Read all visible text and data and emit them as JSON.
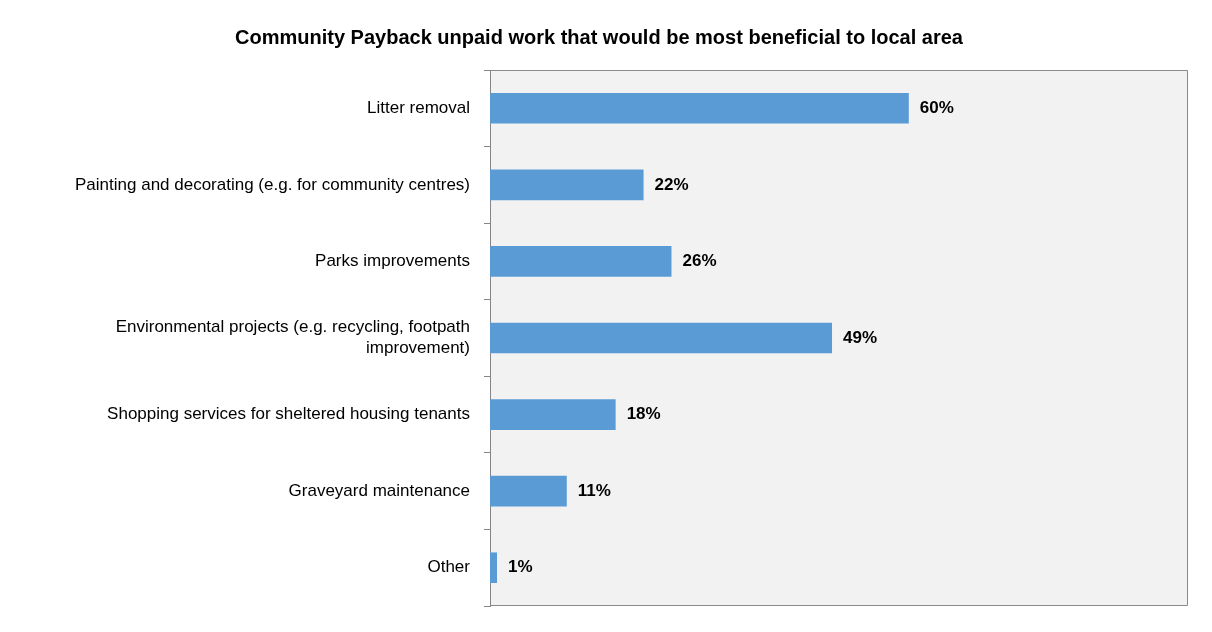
{
  "chart_data": {
    "type": "bar",
    "orientation": "horizontal",
    "title": "Community Payback unpaid work that would be most beneficial to local area",
    "categories": [
      "Litter removal",
      "Painting and decorating (e.g. for community centres)",
      "Parks improvements",
      "Environmental projects (e.g. recycling, footpath improvement)",
      "Shopping services for sheltered housing tenants",
      "Graveyard maintenance",
      "Other"
    ],
    "values": [
      60,
      22,
      26,
      49,
      18,
      11,
      1
    ],
    "value_labels": [
      "60%",
      "22%",
      "26%",
      "49%",
      "18%",
      "11%",
      "1%"
    ],
    "color": "#5b9bd5",
    "xlim": [
      0,
      100
    ],
    "tick_labels": "y"
  }
}
